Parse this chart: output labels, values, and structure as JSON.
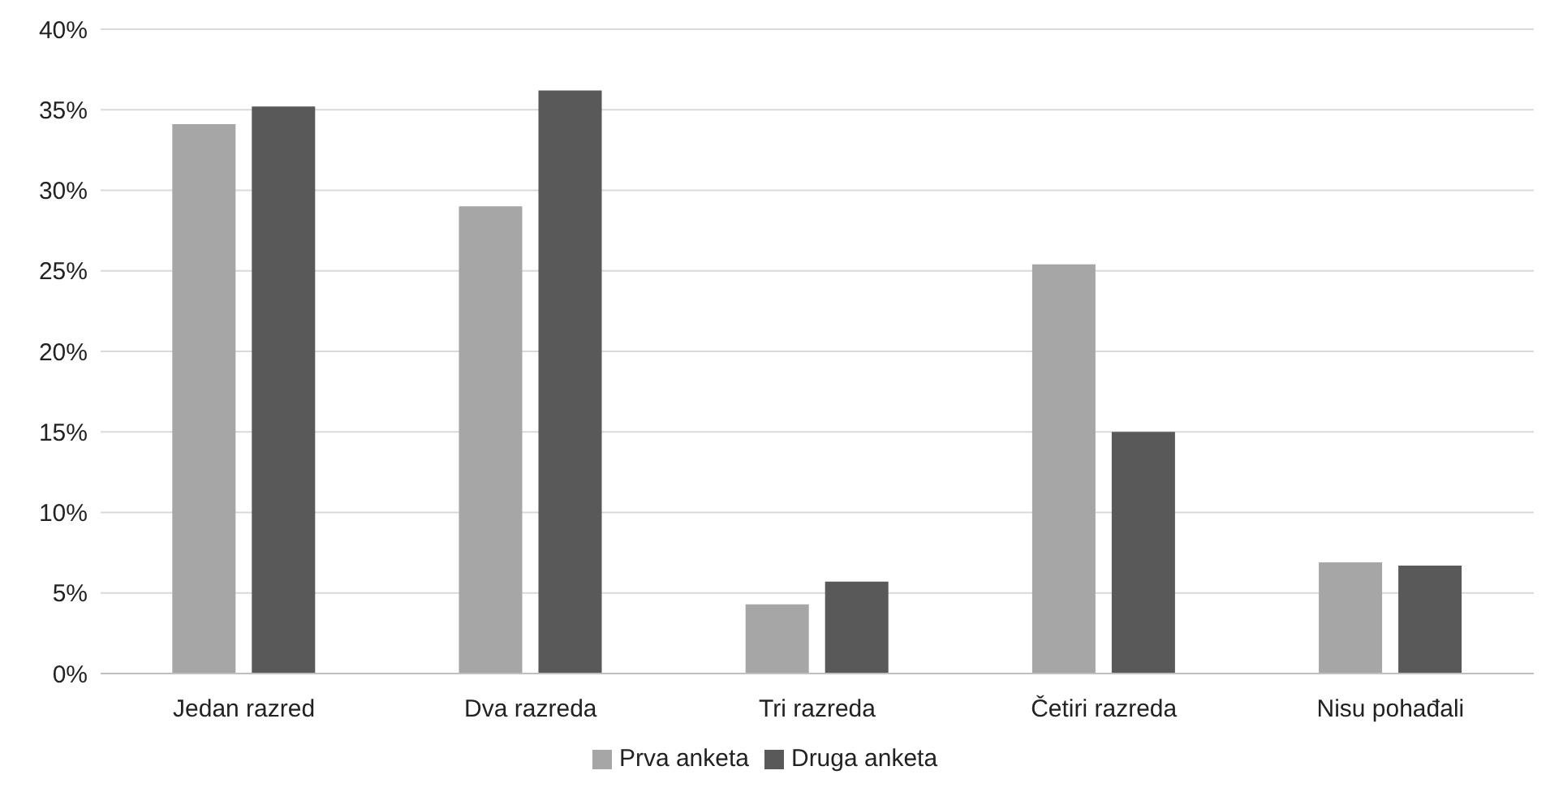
{
  "chart_data": {
    "type": "bar",
    "categories": [
      "Jedan razred",
      "Dva razreda",
      "Tri razreda",
      "Četiri razreda",
      "Nisu pohađali"
    ],
    "series": [
      {
        "name": "Prva anketa",
        "color": "#a6a6a6",
        "values": [
          34.1,
          29.0,
          4.3,
          25.4,
          6.9
        ]
      },
      {
        "name": "Druga anketa",
        "color": "#595959",
        "values": [
          35.2,
          36.2,
          5.7,
          15.0,
          6.7
        ]
      }
    ],
    "ylim": [
      0,
      40
    ],
    "yticks": [
      {
        "value": 0,
        "label": "0%"
      },
      {
        "value": 5,
        "label": "5%"
      },
      {
        "value": 10,
        "label": "10%"
      },
      {
        "value": 15,
        "label": "15%"
      },
      {
        "value": 20,
        "label": "20%"
      },
      {
        "value": 25,
        "label": "25%"
      },
      {
        "value": 30,
        "label": "30%"
      },
      {
        "value": 35,
        "label": "35%"
      },
      {
        "value": 40,
        "label": "40%"
      }
    ],
    "grid": "y",
    "legend": "bottom"
  }
}
